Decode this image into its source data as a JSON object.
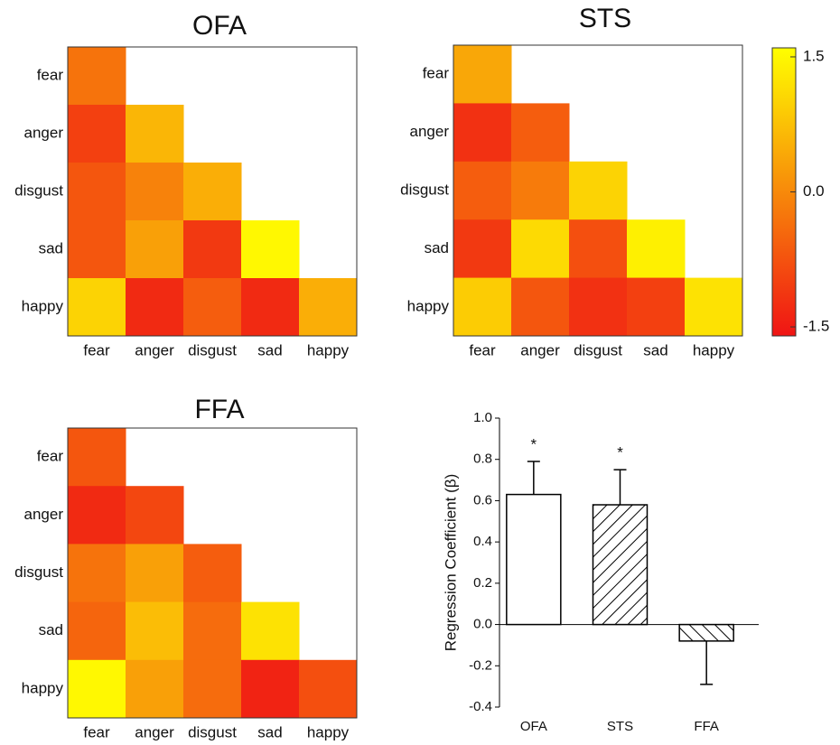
{
  "chart_data": [
    {
      "type": "heatmap",
      "title": "OFA",
      "categories": [
        "fear",
        "anger",
        "disgust",
        "sad",
        "happy"
      ],
      "z": [
        [
          -0.3,
          null,
          null,
          null,
          null
        ],
        [
          -1.0,
          0.6,
          null,
          null,
          null
        ],
        [
          -0.7,
          -0.1,
          0.5,
          null,
          null
        ],
        [
          -0.7,
          0.3,
          -1.1,
          1.5,
          null
        ],
        [
          1.0,
          -1.3,
          -0.6,
          -1.3,
          0.5
        ]
      ]
    },
    {
      "type": "heatmap",
      "title": "STS",
      "categories": [
        "fear",
        "anger",
        "disgust",
        "sad",
        "happy"
      ],
      "z": [
        [
          0.4,
          null,
          null,
          null,
          null
        ],
        [
          -1.2,
          -0.6,
          null,
          null,
          null
        ],
        [
          -0.6,
          -0.2,
          1.0,
          null,
          null
        ],
        [
          -1.1,
          1.1,
          -0.8,
          1.4,
          null
        ],
        [
          0.9,
          -0.7,
          -1.2,
          -1.0,
          1.2
        ]
      ]
    },
    {
      "type": "heatmap",
      "title": "FFA",
      "categories": [
        "fear",
        "anger",
        "disgust",
        "sad",
        "happy"
      ],
      "z": [
        [
          -0.7,
          null,
          null,
          null,
          null
        ],
        [
          -1.3,
          -0.9,
          null,
          null,
          null
        ],
        [
          -0.3,
          0.3,
          -0.6,
          null,
          null
        ],
        [
          -0.5,
          0.7,
          -0.4,
          1.2,
          null
        ],
        [
          1.5,
          0.3,
          -0.4,
          -1.4,
          -0.8
        ]
      ]
    },
    {
      "type": "colorbar",
      "zlim": [
        -1.6,
        1.6
      ],
      "yticks": [
        1.5,
        {
          "value": 0,
          "label": "0.0"
        },
        -1.5
      ]
    },
    {
      "type": "bar",
      "ylabel": "Regression Coefficient (β)",
      "categories": [
        "OFA",
        "STS",
        "FFA"
      ],
      "values": [
        0.63,
        0.58,
        -0.08
      ],
      "errors": [
        0.16,
        0.17,
        0.21
      ],
      "hatch": [
        "none",
        "/",
        "\\"
      ],
      "significance": [
        "*",
        "*",
        null
      ],
      "ylim": [
        -0.4,
        1.0
      ],
      "yticks": [
        {
          "value": 1,
          "label": "1.0"
        },
        0.8,
        0.6,
        0.4,
        0.2,
        {
          "value": 0,
          "label": "0.0"
        },
        -0.2,
        -0.4
      ]
    }
  ]
}
